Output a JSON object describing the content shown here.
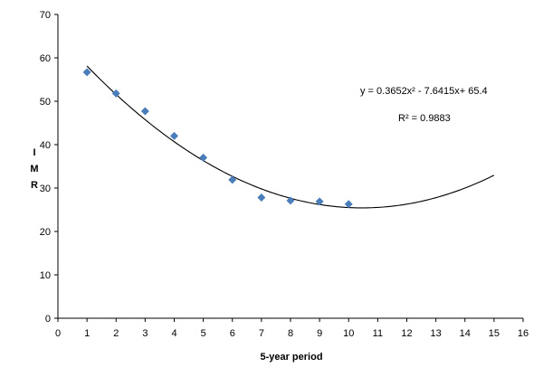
{
  "chart_data": {
    "type": "scatter",
    "xlabel": "5-year period",
    "ylabel": "I M R",
    "xlim": [
      0,
      16
    ],
    "ylim": [
      0,
      70
    ],
    "xticks": [
      0,
      1,
      2,
      3,
      4,
      5,
      6,
      7,
      8,
      9,
      10,
      11,
      12,
      13,
      14,
      15,
      16
    ],
    "yticks": [
      0,
      10,
      20,
      30,
      40,
      50,
      60,
      70
    ],
    "grid": false,
    "points": [
      {
        "x": 1,
        "y": 56.7
      },
      {
        "x": 2,
        "y": 51.8
      },
      {
        "x": 3,
        "y": 47.7
      },
      {
        "x": 4,
        "y": 42.0
      },
      {
        "x": 5,
        "y": 37.0
      },
      {
        "x": 6,
        "y": 31.9
      },
      {
        "x": 7,
        "y": 27.8
      },
      {
        "x": 8,
        "y": 27.1
      },
      {
        "x": 9,
        "y": 26.9
      },
      {
        "x": 10,
        "y": 26.3
      }
    ],
    "marker_color": "#4a7ebb",
    "trendline": {
      "type": "polynomial",
      "a": 0.3652,
      "b": -7.6415,
      "c": 65.4,
      "x_range": [
        1,
        15
      ],
      "color": "#000000"
    },
    "annotations": {
      "equation": "y = 0.3652x² - 7.6415x+ 65.4",
      "r_squared": "R² = 0.9883"
    }
  }
}
